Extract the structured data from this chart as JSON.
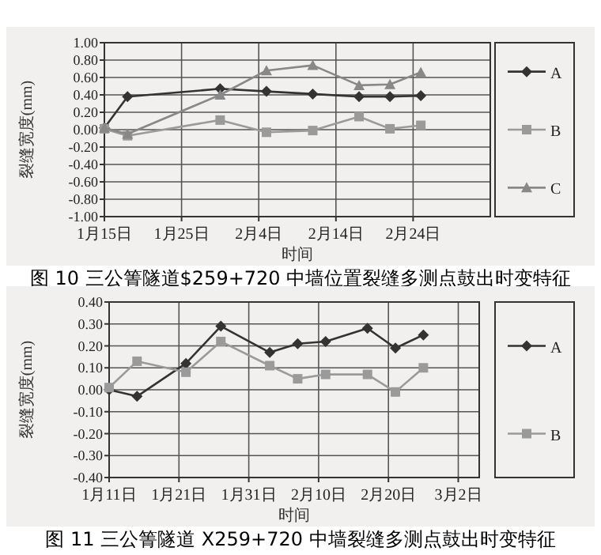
{
  "chart_data": [
    {
      "type": "line",
      "xlabel": "时间",
      "ylabel": "裂缝宽度(mm)",
      "annotations": [
        "图 10 三公箐隧道$259+720 中墙位置裂缝多测点鼓出时变特征"
      ],
      "x": [
        "--01-15",
        "--01-18",
        "--01-30",
        "--02-05",
        "--02-11",
        "--02-17",
        "--02-21",
        "--02-25"
      ],
      "series": [
        {
          "name": "A",
          "color": "#333333",
          "marker": "diamond",
          "values": [
            0.02,
            0.38,
            0.47,
            0.44,
            0.41,
            0.38,
            0.38,
            0.39
          ]
        },
        {
          "name": "B",
          "color": "#9a9a9a",
          "marker": "square",
          "values": [
            0.01,
            -0.07,
            0.11,
            -0.03,
            -0.01,
            0.15,
            0.01,
            0.05
          ]
        },
        {
          "name": "C",
          "color": "#888888",
          "marker": "triangle",
          "values": [
            0.02,
            -0.05,
            0.4,
            0.68,
            0.74,
            0.51,
            0.52,
            0.66
          ]
        }
      ],
      "xlim": [
        "--01-15",
        "--03-06"
      ],
      "xticks": [
        {
          "value": "--01-15",
          "label": "1月15日"
        },
        {
          "value": "--01-25",
          "label": "1月25日"
        },
        {
          "value": "--02-04",
          "label": "2月4日"
        },
        {
          "value": "--02-14",
          "label": "2月14日"
        },
        {
          "value": "--02-24",
          "label": "2月24日"
        }
      ],
      "ylim": [
        -1,
        1
      ],
      "yticks": [
        {
          "value": -1,
          "label": "-1.00"
        },
        {
          "value": -0.8,
          "label": "-0.80"
        },
        {
          "value": -0.6,
          "label": "-0.60"
        },
        {
          "value": -0.4,
          "label": "-0.40"
        },
        {
          "value": -0.2,
          "label": "-0.20"
        },
        {
          "value": 0,
          "label": "0.00"
        },
        {
          "value": 0.2,
          "label": "0.20"
        },
        {
          "value": 0.4,
          "label": "0.40"
        },
        {
          "value": 0.6,
          "label": "0.60"
        },
        {
          "value": 0.8,
          "label": "0.80"
        },
        {
          "value": 1,
          "label": "1.00"
        }
      ],
      "grid": true,
      "legend": "right"
    },
    {
      "type": "line",
      "xlabel": "时间",
      "ylabel": "裂缝宽度(mm)",
      "annotations": [
        "图 11 三公箐隧道 X259+720 中墙裂缝多测点鼓出时变特征"
      ],
      "x": [
        "--01-11",
        "--01-15",
        "--01-22",
        "--01-27",
        "--02-03",
        "--02-07",
        "--02-11",
        "--02-17",
        "--02-21",
        "--02-25"
      ],
      "series": [
        {
          "name": "A",
          "color": "#333333",
          "marker": "diamond",
          "values": [
            0.0,
            -0.03,
            0.12,
            0.29,
            0.17,
            0.21,
            0.22,
            0.28,
            0.19,
            0.25
          ]
        },
        {
          "name": "B",
          "color": "#9a9a9a",
          "marker": "square",
          "values": [
            0.01,
            0.13,
            0.08,
            0.22,
            0.11,
            0.05,
            0.07,
            0.07,
            -0.01,
            0.1
          ]
        }
      ],
      "xlim": [
        "--01-11",
        "--03-05"
      ],
      "xticks": [
        {
          "value": "--01-11",
          "label": "1月11日"
        },
        {
          "value": "--01-21",
          "label": "1月21日"
        },
        {
          "value": "--01-31",
          "label": "1月31日"
        },
        {
          "value": "--02-10",
          "label": "2月10日"
        },
        {
          "value": "--02-20",
          "label": "2月20日"
        },
        {
          "value": "--03-02",
          "label": "3月2日"
        }
      ],
      "ylim": [
        -0.4,
        0.4
      ],
      "yticks": [
        {
          "value": -0.4,
          "label": "-0.40"
        },
        {
          "value": -0.3,
          "label": "-0.30"
        },
        {
          "value": -0.2,
          "label": "-0.20"
        },
        {
          "value": -0.1,
          "label": "-0.10"
        },
        {
          "value": 0,
          "label": "0.00"
        },
        {
          "value": 0.1,
          "label": "0.10"
        },
        {
          "value": 0.2,
          "label": "0.20"
        },
        {
          "value": 0.3,
          "label": "0.30"
        },
        {
          "value": 0.4,
          "label": "0.40"
        }
      ],
      "grid": true,
      "legend": "right"
    }
  ]
}
